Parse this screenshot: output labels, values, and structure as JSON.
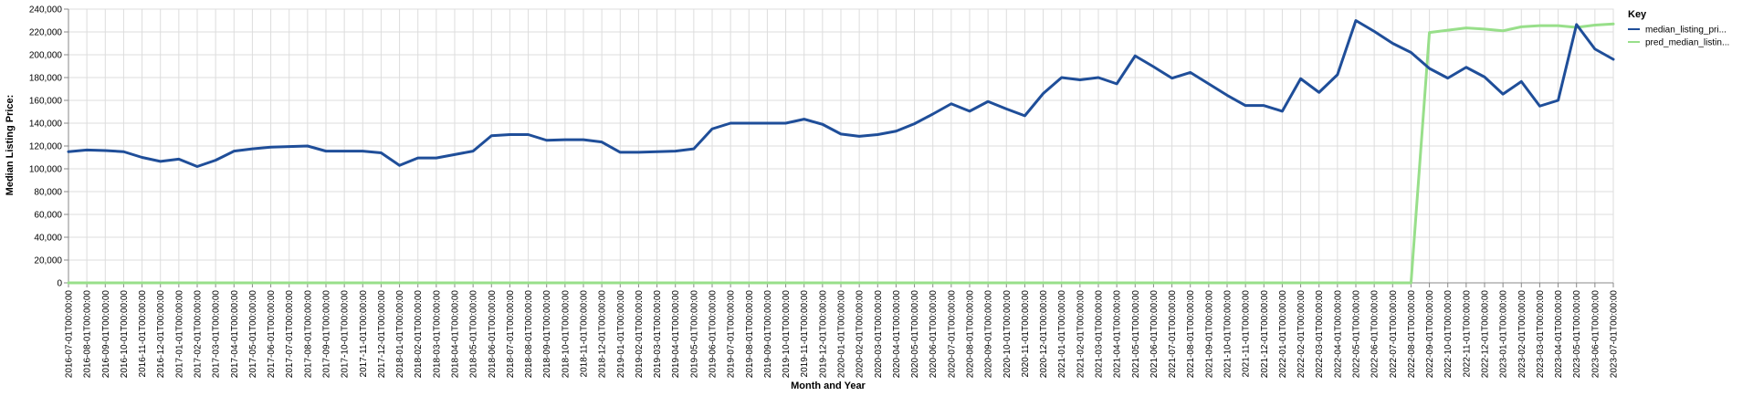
{
  "chart_data": {
    "type": "line",
    "xlabel": "Month and Year",
    "ylabel": "Median Listing Price:",
    "ylim": [
      0,
      240000
    ],
    "yticks": [
      "0",
      "20,000",
      "40,000",
      "60,000",
      "80,000",
      "100,000",
      "120,000",
      "140,000",
      "160,000",
      "180,000",
      "200,000",
      "220,000",
      "240,000"
    ],
    "grid": true,
    "legend": {
      "title": "Key",
      "placement": "right"
    },
    "categories": [
      "2016-07-01T00:00:00",
      "2016-08-01T00:00:00",
      "2016-09-01T00:00:00",
      "2016-10-01T00:00:00",
      "2016-11-01T00:00:00",
      "2016-12-01T00:00:00",
      "2017-01-01T00:00:00",
      "2017-02-01T00:00:00",
      "2017-03-01T00:00:00",
      "2017-04-01T00:00:00",
      "2017-05-01T00:00:00",
      "2017-06-01T00:00:00",
      "2017-07-01T00:00:00",
      "2017-08-01T00:00:00",
      "2017-09-01T00:00:00",
      "2017-10-01T00:00:00",
      "2017-11-01T00:00:00",
      "2017-12-01T00:00:00",
      "2018-01-01T00:00:00",
      "2018-02-01T00:00:00",
      "2018-03-01T00:00:00",
      "2018-04-01T00:00:00",
      "2018-05-01T00:00:00",
      "2018-06-01T00:00:00",
      "2018-07-01T00:00:00",
      "2018-08-01T00:00:00",
      "2018-09-01T00:00:00",
      "2018-10-01T00:00:00",
      "2018-11-01T00:00:00",
      "2018-12-01T00:00:00",
      "2019-01-01T00:00:00",
      "2019-02-01T00:00:00",
      "2019-03-01T00:00:00",
      "2019-04-01T00:00:00",
      "2019-05-01T00:00:00",
      "2019-06-01T00:00:00",
      "2019-07-01T00:00:00",
      "2019-08-01T00:00:00",
      "2019-09-01T00:00:00",
      "2019-10-01T00:00:00",
      "2019-11-01T00:00:00",
      "2019-12-01T00:00:00",
      "2020-01-01T00:00:00",
      "2020-02-01T00:00:00",
      "2020-03-01T00:00:00",
      "2020-04-01T00:00:00",
      "2020-05-01T00:00:00",
      "2020-06-01T00:00:00",
      "2020-07-01T00:00:00",
      "2020-08-01T00:00:00",
      "2020-09-01T00:00:00",
      "2020-10-01T00:00:00",
      "2020-11-01T00:00:00",
      "2020-12-01T00:00:00",
      "2021-01-01T00:00:00",
      "2021-02-01T00:00:00",
      "2021-03-01T00:00:00",
      "2021-04-01T00:00:00",
      "2021-05-01T00:00:00",
      "2021-06-01T00:00:00",
      "2021-07-01T00:00:00",
      "2021-08-01T00:00:00",
      "2021-09-01T00:00:00",
      "2021-10-01T00:00:00",
      "2021-11-01T00:00:00",
      "2021-12-01T00:00:00",
      "2022-01-01T00:00:00",
      "2022-02-01T00:00:00",
      "2022-03-01T00:00:00",
      "2022-04-01T00:00:00",
      "2022-05-01T00:00:00",
      "2022-06-01T00:00:00",
      "2022-07-01T00:00:00",
      "2022-08-01T00:00:00",
      "2022-09-01T00:00:00",
      "2022-10-01T00:00:00",
      "2022-11-01T00:00:00",
      "2022-12-01T00:00:00",
      "2023-01-01T00:00:00",
      "2023-02-01T00:00:00",
      "2023-03-01T00:00:00",
      "2023-04-01T00:00:00",
      "2023-05-01T00:00:00",
      "2023-06-01T00:00:00",
      "2023-07-01T00:00:00"
    ],
    "series": [
      {
        "name": "median_listing_pri...",
        "color": "#1f4e99",
        "values": [
          115000,
          116500,
          116000,
          115000,
          110000,
          106500,
          108500,
          102000,
          107500,
          115500,
          117500,
          119000,
          119500,
          120000,
          115500,
          115500,
          115500,
          114000,
          103000,
          109500,
          109500,
          112500,
          115500,
          129000,
          130000,
          130000,
          125000,
          125500,
          125500,
          123500,
          114500,
          114500,
          115000,
          115500,
          117500,
          135000,
          140000,
          140000,
          140000,
          140000,
          143500,
          139000,
          130500,
          128500,
          130000,
          133000,
          139500,
          148000,
          157000,
          150500,
          159000,
          152500,
          146500,
          166000,
          180000,
          178000,
          180000,
          174500,
          199000,
          189500,
          179500,
          184500,
          174500,
          164500,
          155500,
          155500,
          150500,
          179000,
          167000,
          182500,
          230000,
          220500,
          210000,
          202000,
          188000,
          179500,
          189000,
          180500,
          165500,
          176500,
          155000,
          160000,
          226500,
          205000,
          196000
        ]
      },
      {
        "name": "pred_median_listin...",
        "color": "#98df8a",
        "values": [
          0,
          0,
          0,
          0,
          0,
          0,
          0,
          0,
          0,
          0,
          0,
          0,
          0,
          0,
          0,
          0,
          0,
          0,
          0,
          0,
          0,
          0,
          0,
          0,
          0,
          0,
          0,
          0,
          0,
          0,
          0,
          0,
          0,
          0,
          0,
          0,
          0,
          0,
          0,
          0,
          0,
          0,
          0,
          0,
          0,
          0,
          0,
          0,
          0,
          0,
          0,
          0,
          0,
          0,
          0,
          0,
          0,
          0,
          0,
          0,
          0,
          0,
          0,
          0,
          0,
          0,
          0,
          0,
          0,
          0,
          0,
          0,
          0,
          0,
          219500,
          221500,
          223500,
          222500,
          221000,
          224500,
          225500,
          225500,
          224000,
          226000,
          227000
        ]
      }
    ]
  }
}
